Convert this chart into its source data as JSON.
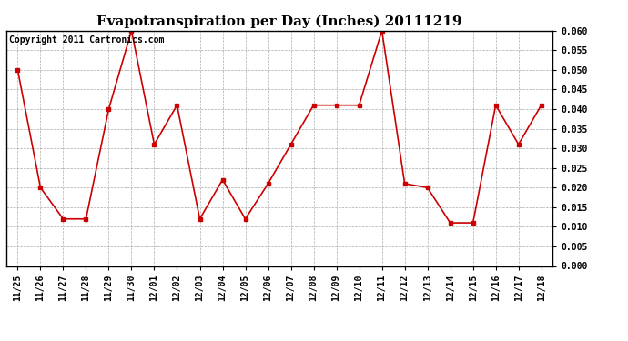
{
  "title": "Evapotranspiration per Day (Inches) 20111219",
  "copyright_text": "Copyright 2011 Cartronics.com",
  "dates": [
    "11/25",
    "11/26",
    "11/27",
    "11/28",
    "11/29",
    "11/30",
    "12/01",
    "12/02",
    "12/03",
    "12/04",
    "12/05",
    "12/06",
    "12/07",
    "12/08",
    "12/09",
    "12/10",
    "12/11",
    "12/12",
    "12/13",
    "12/14",
    "12/15",
    "12/16",
    "12/17",
    "12/18"
  ],
  "values": [
    0.05,
    0.02,
    0.012,
    0.012,
    0.04,
    0.06,
    0.031,
    0.041,
    0.012,
    0.022,
    0.012,
    0.021,
    0.031,
    0.041,
    0.041,
    0.041,
    0.06,
    0.021,
    0.02,
    0.011,
    0.011,
    0.041,
    0.031,
    0.041
  ],
  "ylim": [
    0.0,
    0.06
  ],
  "yticks": [
    0.0,
    0.005,
    0.01,
    0.015,
    0.02,
    0.025,
    0.03,
    0.035,
    0.04,
    0.045,
    0.05,
    0.055,
    0.06
  ],
  "line_color": "#cc0000",
  "marker": "s",
  "marker_size": 3,
  "background_color": "#ffffff",
  "grid_color": "#aaaaaa",
  "title_fontsize": 11,
  "tick_fontsize": 7,
  "copyright_fontsize": 7,
  "label_font_weight": "bold"
}
